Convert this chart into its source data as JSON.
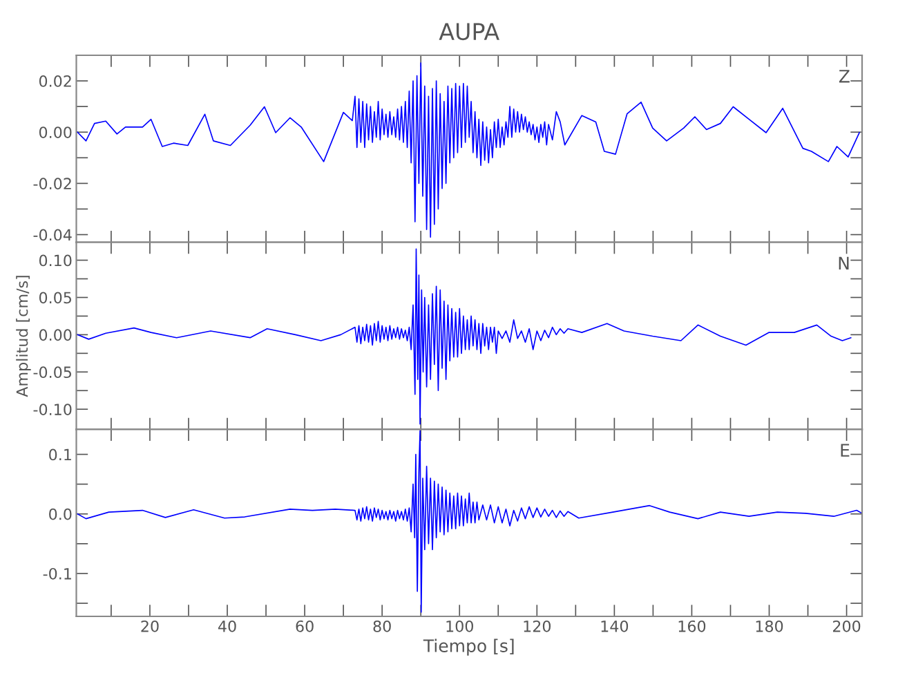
{
  "chart_data": [
    {
      "type": "line",
      "title": "AUPA",
      "annotations": [
        "Z"
      ],
      "color": "#0000ff",
      "tick_labels": "y",
      "grid": false,
      "xlim": [
        1,
        204
      ],
      "xticks": [
        {
          "value": 10,
          "label": null
        },
        20,
        {
          "value": 30,
          "label": null
        },
        40,
        {
          "value": 50,
          "label": null
        },
        60,
        {
          "value": 70,
          "label": null
        },
        80,
        {
          "value": 90,
          "label": null
        },
        100,
        {
          "value": 110,
          "label": null
        },
        120,
        {
          "value": 130,
          "label": null
        },
        140,
        {
          "value": 150,
          "label": null
        },
        160,
        {
          "value": 170,
          "label": null
        },
        180,
        {
          "value": 190,
          "label": null
        },
        200
      ],
      "ylim": [
        -0.043,
        0.03
      ],
      "yticks": [
        {
          "value": -0.04,
          "label": "-0.04"
        },
        {
          "value": -0.03,
          "label": null
        },
        {
          "value": -0.02,
          "label": "-0.02"
        },
        {
          "value": -0.01,
          "label": null
        },
        {
          "value": 0,
          "label": "0.00"
        },
        {
          "value": 0.01,
          "label": null
        },
        {
          "value": 0.02,
          "label": "0.02"
        }
      ],
      "x": [
        1.3,
        3.5,
        5.7,
        8.6,
        11.5,
        13.7,
        18.1,
        20.3,
        23.2,
        26.1,
        29.8,
        34.2,
        36.4,
        40.8,
        45.9,
        49.6,
        52.5,
        56.2,
        59.1,
        64.9,
        70.0,
        72.3,
        73.0,
        73.5,
        74,
        74.5,
        75,
        75.5,
        76,
        76.5,
        77,
        77.5,
        78,
        78.5,
        79,
        79.5,
        80,
        80.5,
        81,
        81.5,
        82,
        82.5,
        83,
        83.5,
        84,
        84.5,
        85,
        85.5,
        86,
        86.5,
        87,
        87.5,
        88,
        88.5,
        89,
        89.5,
        90,
        90.5,
        91,
        91.5,
        92,
        92.5,
        93,
        93.5,
        94,
        94.5,
        95,
        95.5,
        96,
        96.5,
        97,
        97.5,
        98,
        98.5,
        99,
        99.5,
        100,
        100.5,
        101,
        101.5,
        102,
        102.5,
        103,
        103.5,
        104,
        104.5,
        105,
        105.5,
        106,
        106.5,
        107,
        107.5,
        108,
        108.5,
        109,
        109.5,
        110,
        110.5,
        111,
        111.5,
        112,
        112.5,
        113,
        113.5,
        114,
        114.5,
        115,
        115.5,
        116,
        116.5,
        117,
        117.5,
        118,
        118.5,
        119,
        119.5,
        120,
        120.5,
        121,
        121.5,
        122,
        122.5,
        123,
        124,
        125,
        126,
        127.2,
        131.6,
        135.2,
        137.4,
        140.3,
        143.3,
        146.9,
        149.9,
        153.5,
        157.9,
        160.8,
        163.8,
        167.4,
        170.7,
        174.8,
        179.2,
        183.5,
        188.7,
        190.9,
        195.3,
        197.5,
        200.4,
        203.3
      ],
      "values": [
        0,
        -0.0034,
        0.0034,
        0.0043,
        -0.0007,
        0.002,
        0.002,
        0.005,
        -0.0056,
        -0.0043,
        -0.0052,
        0.007,
        -0.0034,
        -0.0052,
        0.0027,
        0.0099,
        -0.0002,
        0.0056,
        0.002,
        -0.0115,
        0.0077,
        0.0045,
        0.014,
        -0.006,
        0.013,
        -0.004,
        0.012,
        -0.006,
        0.011,
        -0.003,
        0.01,
        -0.004,
        0.008,
        -0.002,
        0.012,
        -0.003,
        0.009,
        -0.001,
        0.007,
        -0.002,
        0.008,
        -0.001,
        0.006,
        -0.002,
        0.009,
        -0.003,
        0.01,
        -0.004,
        0.012,
        -0.006,
        0.016,
        -0.012,
        0.02,
        -0.035,
        0.022,
        -0.02,
        0.027,
        -0.025,
        0.018,
        -0.038,
        0.014,
        -0.041,
        0.017,
        -0.036,
        0.02,
        -0.03,
        0.015,
        -0.022,
        0.012,
        -0.02,
        0.018,
        -0.012,
        0.017,
        -0.01,
        0.019,
        -0.008,
        0.018,
        -0.006,
        0.019,
        -0.004,
        0.018,
        -0.002,
        0.012,
        -0.008,
        0.008,
        -0.01,
        0.005,
        -0.013,
        0.004,
        -0.011,
        0.002,
        -0.012,
        0.001,
        -0.01,
        0.004,
        -0.006,
        0.005,
        -0.006,
        0.002,
        -0.005,
        0.004,
        -0.002,
        0.01,
        -0.002,
        0.009,
        0.0,
        0.008,
        0.0,
        0.007,
        0.001,
        0.006,
        0.0,
        0.004,
        -0.001,
        0.003,
        -0.003,
        0.002,
        -0.004,
        0.003,
        -0.002,
        0.004,
        -0.005,
        0.003,
        -0.003,
        0.008,
        0.004,
        -0.005,
        0.0065,
        0.004,
        -0.0075,
        -0.0086,
        0.0072,
        0.0117,
        0.0016,
        -0.0034,
        0.0016,
        0.006,
        0.001,
        0.0034,
        0.0099,
        0.005,
        -0.0002,
        0.0093,
        -0.0063,
        -0.0075,
        -0.0115,
        -0.0056,
        -0.0097,
        -0.0002
      ]
    },
    {
      "type": "line",
      "ylabel": "Amplitud [cm/s]",
      "annotations": [
        "N"
      ],
      "color": "#0000ff",
      "tick_labels": "y",
      "grid": false,
      "xlim": [
        1,
        204
      ],
      "xticks": [
        {
          "value": 10,
          "label": null
        },
        20,
        {
          "value": 30,
          "label": null
        },
        40,
        {
          "value": 50,
          "label": null
        },
        60,
        {
          "value": 70,
          "label": null
        },
        80,
        {
          "value": 90,
          "label": null
        },
        100,
        {
          "value": 110,
          "label": null
        },
        120,
        {
          "value": 130,
          "label": null
        },
        140,
        {
          "value": 150,
          "label": null
        },
        160,
        {
          "value": 170,
          "label": null
        },
        180,
        {
          "value": 190,
          "label": null
        },
        200
      ],
      "ylim": [
        -0.127,
        0.124
      ],
      "yticks": [
        {
          "value": -0.1,
          "label": "-0.10"
        },
        {
          "value": -0.075,
          "label": null
        },
        {
          "value": -0.05,
          "label": "-0.05"
        },
        {
          "value": -0.025,
          "label": null
        },
        {
          "value": 0,
          "label": "0.00"
        },
        {
          "value": 0.025,
          "label": null
        },
        {
          "value": 0.05,
          "label": "0.05"
        },
        {
          "value": 0.075,
          "label": null
        },
        {
          "value": 0.1,
          "label": "0.10"
        }
      ],
      "x": [
        1.3,
        4.2,
        8.6,
        15.9,
        20.3,
        26.9,
        35.7,
        45.9,
        50.3,
        57.6,
        64.2,
        69.3,
        73,
        73.5,
        74,
        74.5,
        75,
        75.5,
        76,
        76.5,
        77,
        77.5,
        78,
        78.5,
        79,
        79.5,
        80,
        80.5,
        81,
        81.5,
        82,
        82.5,
        83,
        83.5,
        84,
        84.5,
        85,
        85.5,
        86,
        86.5,
        87,
        87.5,
        88,
        88.5,
        88.8,
        89.2,
        89.5,
        89.8,
        90.2,
        90.6,
        91,
        91.5,
        92,
        92.5,
        93,
        93.5,
        94,
        94.5,
        95,
        95.5,
        96,
        96.5,
        97,
        97.5,
        98,
        98.5,
        99,
        99.5,
        100,
        100.5,
        101,
        101.5,
        102,
        102.5,
        103,
        103.5,
        104,
        104.5,
        105,
        105.5,
        106,
        106.5,
        107,
        107.5,
        108,
        108.5,
        109,
        109.5,
        110,
        111,
        112,
        113,
        114,
        115,
        116,
        117,
        118,
        119,
        120,
        121,
        122,
        123,
        124,
        125,
        126,
        127,
        128,
        131.6,
        138.1,
        142.5,
        149.9,
        157.2,
        161.6,
        167.4,
        174,
        179.9,
        186.5,
        192.3,
        196,
        198.9,
        201.1
      ],
      "values": [
        0,
        -0.006,
        0.002,
        0.009,
        0.003,
        -0.004,
        0.005,
        -0.004,
        0.008,
        0,
        -0.008,
        0,
        0.01,
        -0.01,
        0.012,
        -0.012,
        0.01,
        -0.008,
        0.014,
        -0.01,
        0.012,
        -0.014,
        0.015,
        -0.008,
        0.018,
        -0.01,
        0.012,
        -0.006,
        0.01,
        -0.008,
        0.012,
        -0.006,
        0.008,
        -0.004,
        0.01,
        -0.006,
        0.008,
        -0.004,
        0.006,
        -0.008,
        0.01,
        -0.02,
        0.04,
        -0.08,
        0.115,
        -0.06,
        0.08,
        -0.12,
        0.06,
        -0.05,
        0.05,
        -0.07,
        0.04,
        -0.06,
        0.055,
        -0.04,
        0.065,
        -0.075,
        0.06,
        -0.045,
        0.045,
        -0.06,
        0.04,
        -0.035,
        0.035,
        -0.03,
        0.03,
        -0.03,
        0.035,
        -0.025,
        0.025,
        -0.02,
        0.02,
        -0.02,
        0.025,
        -0.015,
        0.02,
        -0.02,
        0.015,
        -0.025,
        0.015,
        -0.015,
        0.01,
        -0.02,
        0.01,
        -0.01,
        0.01,
        -0.025,
        0.005,
        -0.005,
        0.005,
        -0.01,
        0.02,
        -0.005,
        0.005,
        -0.01,
        0.008,
        -0.02,
        0.005,
        -0.008,
        0.006,
        -0.004,
        0.01,
        0.0,
        0.008,
        0.002,
        0.008,
        0.003,
        0.015,
        0.005,
        -0.002,
        -0.008,
        0.013,
        -0.002,
        -0.014,
        0.003,
        0.003,
        0.013,
        -0.002,
        -0.008,
        -0.004
      ]
    },
    {
      "type": "line",
      "xlabel": "Tiempo [s]",
      "annotations": [
        "E"
      ],
      "color": "#0000ff",
      "grid": false,
      "xlim": [
        1,
        204
      ],
      "xticks": [
        {
          "value": 10,
          "label": null
        },
        20,
        {
          "value": 30,
          "label": null
        },
        40,
        {
          "value": 50,
          "label": null
        },
        60,
        {
          "value": 70,
          "label": null
        },
        80,
        {
          "value": 90,
          "label": null
        },
        100,
        {
          "value": 110,
          "label": null
        },
        120,
        {
          "value": 130,
          "label": null
        },
        140,
        {
          "value": 150,
          "label": null
        },
        160,
        {
          "value": 170,
          "label": null
        },
        180,
        {
          "value": 190,
          "label": null
        },
        200
      ],
      "ylim": [
        -0.172,
        0.142
      ],
      "yticks": [
        {
          "value": -0.15,
          "label": null
        },
        {
          "value": -0.1,
          "label": "-0.1"
        },
        {
          "value": -0.05,
          "label": null
        },
        {
          "value": 0,
          "label": "0.0"
        },
        {
          "value": 0.05,
          "label": null
        },
        {
          "value": 0.1,
          "label": "0.1"
        }
      ],
      "x": [
        1.3,
        3.5,
        9.4,
        18.1,
        24,
        31.3,
        39.3,
        44.5,
        56.2,
        62,
        67.9,
        73,
        73.5,
        74,
        74.5,
        75,
        75.5,
        76,
        76.5,
        77,
        77.5,
        78,
        78.5,
        79,
        79.5,
        80,
        80.5,
        81,
        81.5,
        82,
        82.5,
        83,
        83.5,
        84,
        84.5,
        85,
        85.5,
        86,
        86.5,
        87,
        87.5,
        88,
        88.4,
        88.7,
        89.1,
        89.5,
        89.8,
        90.1,
        90.5,
        91,
        91.5,
        92,
        92.5,
        93,
        93.5,
        94,
        94.5,
        95,
        95.5,
        96,
        96.5,
        97,
        97.5,
        98,
        98.5,
        99,
        99.5,
        100,
        100.5,
        101,
        101.5,
        102,
        102.5,
        103,
        103.5,
        104,
        104.5,
        105,
        106,
        107,
        108,
        109,
        110,
        111,
        112,
        113,
        114,
        115,
        116,
        117,
        118,
        119,
        120,
        121,
        122,
        123,
        124,
        125,
        126,
        127,
        128,
        130.8,
        139.6,
        149.1,
        154.3,
        161.6,
        167.4,
        174.8,
        182.1,
        189.4,
        196.7,
        202.6,
        204
      ],
      "values": [
        0,
        -0.008,
        0.003,
        0.006,
        -0.006,
        0.007,
        -0.007,
        -0.005,
        0.008,
        0.006,
        0.008,
        0.006,
        -0.01,
        0.008,
        -0.012,
        0.01,
        -0.008,
        0.012,
        -0.01,
        0.008,
        -0.012,
        0.01,
        -0.006,
        0.008,
        -0.01,
        0.006,
        -0.008,
        0.004,
        -0.01,
        0.006,
        -0.008,
        0.004,
        -0.012,
        0.006,
        -0.008,
        0.004,
        -0.01,
        0.008,
        -0.012,
        0.01,
        -0.03,
        0.05,
        -0.04,
        0.1,
        -0.13,
        0.07,
        0.14,
        -0.165,
        0.06,
        -0.06,
        0.08,
        -0.05,
        0.06,
        -0.06,
        0.055,
        -0.04,
        0.05,
        -0.03,
        0.045,
        -0.035,
        0.04,
        -0.03,
        0.035,
        -0.025,
        0.03,
        -0.025,
        0.035,
        -0.02,
        0.03,
        -0.02,
        0.025,
        -0.015,
        0.035,
        -0.015,
        0.02,
        -0.015,
        0.02,
        -0.01,
        0.015,
        -0.01,
        0.015,
        -0.015,
        0.012,
        -0.015,
        0.008,
        -0.02,
        0.006,
        -0.012,
        0.01,
        -0.008,
        0.012,
        -0.006,
        0.01,
        -0.005,
        0.008,
        -0.004,
        0.006,
        -0.006,
        0.005,
        -0.004,
        0.004,
        -0.007,
        0.003,
        0.014,
        0.003,
        -0.008,
        0.003,
        -0.004,
        0.003,
        0.001,
        -0.004,
        0.006,
        0.001
      ]
    }
  ]
}
